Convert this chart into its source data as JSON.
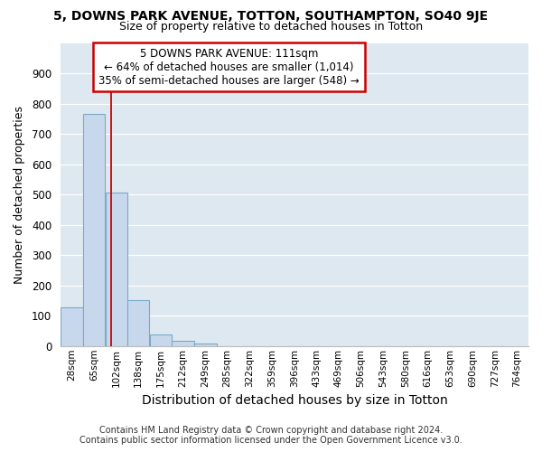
{
  "title": "5, DOWNS PARK AVENUE, TOTTON, SOUTHAMPTON, SO40 9JE",
  "subtitle": "Size of property relative to detached houses in Totton",
  "xlabel": "Distribution of detached houses by size in Totton",
  "ylabel": "Number of detached properties",
  "bar_edges": [
    28,
    65,
    102,
    138,
    175,
    212,
    249,
    285,
    322,
    359,
    396,
    433,
    469,
    506,
    543,
    580,
    616,
    653,
    690,
    727,
    764
  ],
  "bar_heights": [
    128,
    765,
    505,
    152,
    38,
    17,
    9,
    0,
    0,
    0,
    0,
    0,
    0,
    0,
    0,
    0,
    0,
    0,
    0,
    0
  ],
  "bar_color": "#c8d8ec",
  "bar_edge_color": "#7aaac8",
  "vline_x": 111,
  "vline_color": "#cc0000",
  "ylim": [
    0,
    1000
  ],
  "yticks": [
    0,
    100,
    200,
    300,
    400,
    500,
    600,
    700,
    800,
    900,
    1000
  ],
  "annotation_line1": "5 DOWNS PARK AVENUE: 111sqm",
  "annotation_line2": "← 64% of detached houses are smaller (1,014)",
  "annotation_line3": "35% of semi-detached houses are larger (548) →",
  "annotation_box_color": "#cc0000",
  "footer_line1": "Contains HM Land Registry data © Crown copyright and database right 2024.",
  "footer_line2": "Contains public sector information licensed under the Open Government Licence v3.0.",
  "fig_bg_color": "#ffffff",
  "plot_bg_color": "#dde8f0",
  "grid_color": "#ffffff",
  "tick_labels": [
    "28sqm",
    "65sqm",
    "102sqm",
    "138sqm",
    "175sqm",
    "212sqm",
    "249sqm",
    "285sqm",
    "322sqm",
    "359sqm",
    "396sqm",
    "433sqm",
    "469sqm",
    "506sqm",
    "543sqm",
    "580sqm",
    "616sqm",
    "653sqm",
    "690sqm",
    "727sqm",
    "764sqm"
  ]
}
